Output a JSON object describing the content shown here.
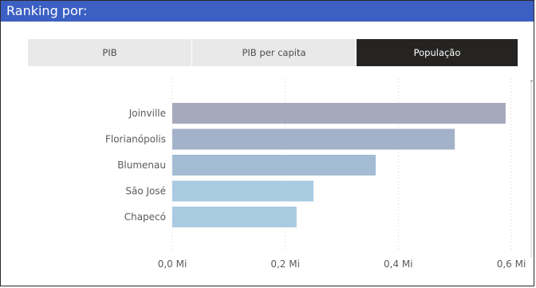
{
  "header": {
    "title": "Ranking por:"
  },
  "tabs": [
    {
      "label": "PIB",
      "active": false
    },
    {
      "label": "PIB per capita",
      "active": false
    },
    {
      "label": "População",
      "active": true
    }
  ],
  "colors": {
    "header_bg": "#3b5fc2",
    "active_tab_bg": "#252423",
    "inactive_tab_bg": "#e9e9e9",
    "bar_colors": [
      "#a6a9bc",
      "#a3b2c9",
      "#a3bcd4",
      "#a9cbe2",
      "#a9cbe2"
    ]
  },
  "chart_data": {
    "type": "bar",
    "orientation": "horizontal",
    "categories": [
      "Joinville",
      "Florianópolis",
      "Blumenau",
      "São José",
      "Chapecó"
    ],
    "values": [
      0.59,
      0.5,
      0.36,
      0.25,
      0.22
    ],
    "x_ticks": [
      0.0,
      0.2,
      0.4,
      0.6
    ],
    "x_tick_labels": [
      "0,0 Mi",
      "0,2 Mi",
      "0,4 Mi",
      "0,6 Mi"
    ],
    "xlim": [
      0,
      0.6
    ],
    "title": "",
    "xlabel": "",
    "ylabel": "",
    "grid": "vertical dotted"
  }
}
